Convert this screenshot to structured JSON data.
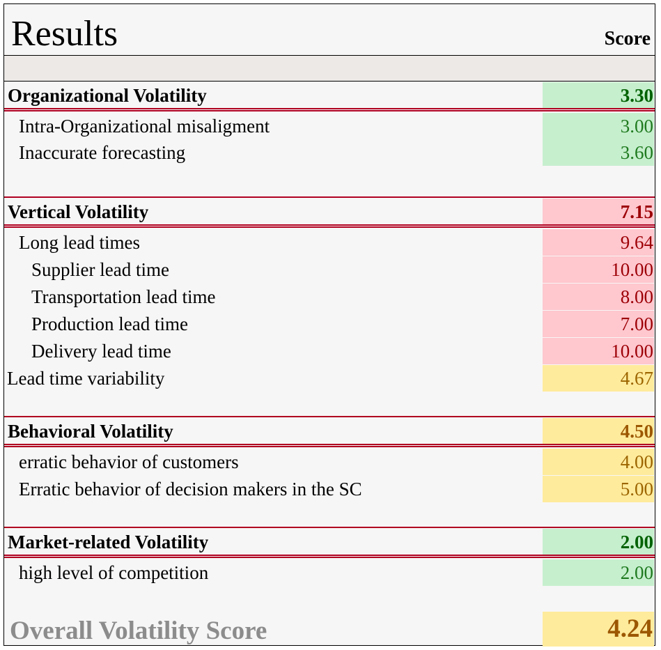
{
  "header": {
    "title": "Results",
    "score_label": "Score"
  },
  "sections": [
    {
      "title": "Organizational Volatility",
      "score": "3.30",
      "items": [
        {
          "label": "Intra-Organizational misaligment",
          "score": "3.00"
        },
        {
          "label": "Inaccurate forecasting",
          "score": "3.60"
        }
      ]
    },
    {
      "title": "Vertical Volatility",
      "score": "7.15",
      "items": [
        {
          "label": "Long lead times",
          "score": "9.64"
        },
        {
          "label": "Supplier lead time",
          "score": "10.00"
        },
        {
          "label": "Transportation lead time",
          "score": "8.00"
        },
        {
          "label": "Production lead time",
          "score": "7.00"
        },
        {
          "label": "Delivery lead time",
          "score": "10.00"
        },
        {
          "label": "Lead time variability",
          "score": "4.67"
        }
      ]
    },
    {
      "title": "Behavioral Volatility",
      "score": "4.50",
      "items": [
        {
          "label": "erratic behavior of customers",
          "score": "4.00"
        },
        {
          "label": "Erratic behavior of decision makers in the SC",
          "score": "5.00"
        }
      ]
    },
    {
      "title": "Market-related Volatility",
      "score": "2.00",
      "items": [
        {
          "label": "high level of competition",
          "score": "2.00"
        }
      ]
    }
  ],
  "overall": {
    "label": "Overall Volatility Score",
    "score": "4.24"
  },
  "colors": {
    "green_fill": "#c6efce",
    "red_fill": "#ffc7ce",
    "yellow_fill": "#ffeb9c",
    "divider": "#b00020"
  }
}
